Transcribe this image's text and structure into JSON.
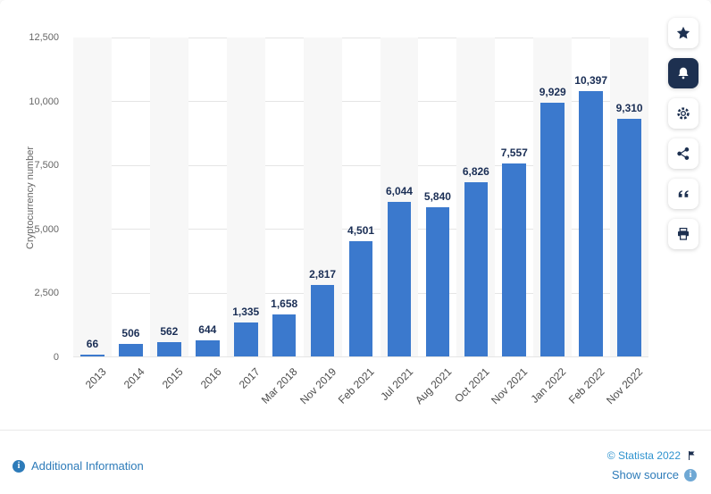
{
  "chart_data": {
    "type": "bar",
    "categories": [
      "2013",
      "2014",
      "2015",
      "2016",
      "2017",
      "Mar 2018",
      "Nov 2019",
      "Feb 2021",
      "Jul 2021",
      "Aug 2021",
      "Oct 2021",
      "Nov 2021",
      "Jan 2022",
      "Feb 2022",
      "Nov 2022"
    ],
    "values": [
      66,
      506,
      562,
      644,
      1335,
      1658,
      2817,
      4501,
      6044,
      5840,
      6826,
      7557,
      9929,
      10397,
      9310
    ],
    "value_labels": [
      "66",
      "506",
      "562",
      "644",
      "1,335",
      "1,658",
      "2,817",
      "4,501",
      "6,044",
      "5,840",
      "6,826",
      "7,557",
      "9,929",
      "10,397",
      "9,310"
    ],
    "title": "",
    "xlabel": "",
    "ylabel": "Cryptocurrency number",
    "yticks": [
      "12,500",
      "10,000",
      "7,500",
      "5,000",
      "2,500",
      "0"
    ],
    "ylim": [
      0,
      12500
    ],
    "grid": true,
    "legend": "none",
    "bar_color": "#3b79cd"
  },
  "sidebar": {
    "icons": [
      {
        "name": "star-icon"
      },
      {
        "name": "bell-icon"
      },
      {
        "name": "gear-icon"
      },
      {
        "name": "share-icon"
      },
      {
        "name": "quote-icon"
      },
      {
        "name": "print-icon"
      }
    ]
  },
  "footer": {
    "additional_information": "Additional Information",
    "copyright": "© Statista 2022",
    "show_source": "Show source",
    "info_glyph": "i"
  }
}
